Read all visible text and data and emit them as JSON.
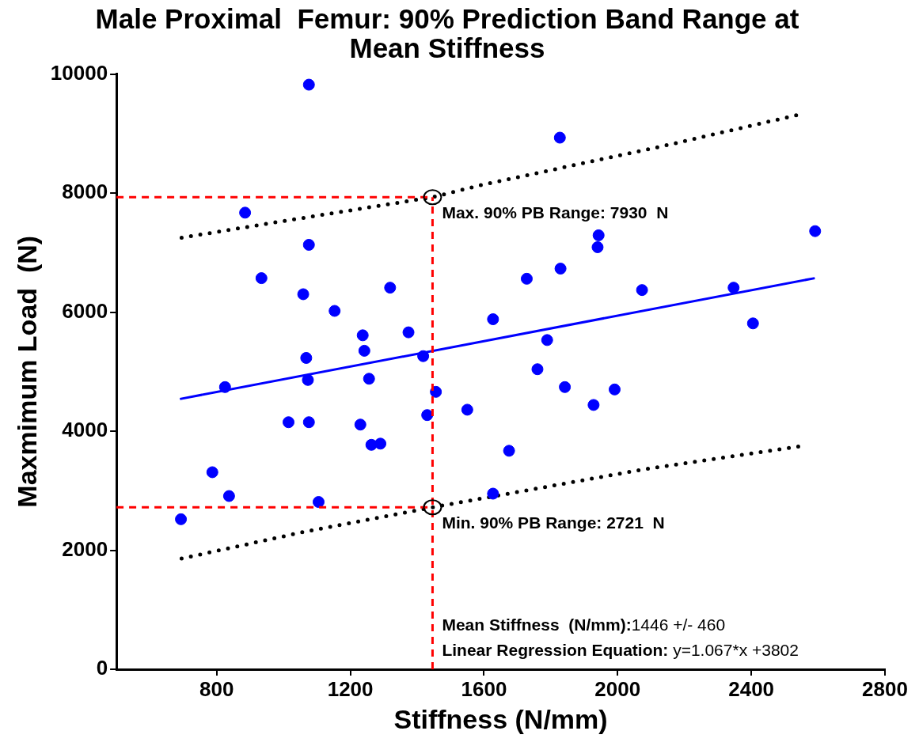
{
  "chart_data": {
    "type": "scatter",
    "title": "Male Proximal  Femur: 90% Prediction Band Range at Mean Stiffness",
    "xlabel": "Stiffness (N/mm)",
    "ylabel": "Maxmimum Load  (N)",
    "xlim": [
      500,
      2800
    ],
    "xticks": [
      800,
      1200,
      1600,
      2000,
      2400,
      2800
    ],
    "ylim": [
      0,
      10000
    ],
    "yticks": [
      0,
      2000,
      4000,
      6000,
      8000,
      10000
    ],
    "grid": false,
    "legend": false,
    "series": [
      {
        "color": "#0000ff",
        "marker": "circle",
        "x": [
          1076,
          885,
          1076,
          934,
          1059,
          1319,
          1153,
          1627,
          1237,
          1374,
          1242,
          1068,
          1418,
          825,
          1073,
          1256,
          1456,
          1550,
          1430,
          1015,
          1076,
          1230,
          1263,
          1290,
          787,
          837,
          1105,
          693,
          1627,
          1827,
          1943,
          1940,
          1829,
          1728,
          2073,
          2347,
          2591,
          2405,
          1789,
          1760,
          1842,
          1928,
          1991,
          1675
        ],
        "values": [
          9820,
          7670,
          7130,
          6570,
          6300,
          6410,
          6020,
          5880,
          5610,
          5660,
          5350,
          5230,
          5260,
          4740,
          4860,
          4880,
          4660,
          4360,
          4270,
          4150,
          4150,
          4110,
          3770,
          3790,
          3310,
          2910,
          2810,
          2520,
          2950,
          8930,
          7290,
          7090,
          6730,
          6560,
          6370,
          6410,
          7360,
          5810,
          5530,
          5040,
          4740,
          4440,
          4700,
          3670
        ]
      },
      {
        "type": "line",
        "color": "#0000ff",
        "line_style": "solid",
        "x": [
          690,
          2590
        ],
        "values": [
          4540,
          6570
        ]
      },
      {
        "type": "line",
        "color": "#000000",
        "line_style": "dotted",
        "x": [
          695,
          979,
          1446,
          1596,
          2121,
          2545
        ],
        "values": [
          7250,
          7510,
          7930,
          8140,
          8770,
          9320
        ]
      },
      {
        "type": "line",
        "color": "#000000",
        "line_style": "dotted",
        "x": [
          695,
          1071,
          1446,
          2070,
          2550
        ],
        "values": [
          1860,
          2320,
          2720,
          3350,
          3750
        ]
      }
    ],
    "ref_lines": [
      {
        "axis": "x",
        "value": 1446,
        "color": "#ff0000",
        "line_style": "dashed"
      },
      {
        "axis": "y",
        "value": 7930,
        "color": "#ff0000",
        "line_style": "dashed"
      },
      {
        "axis": "y",
        "value": 2721,
        "color": "#ff0000",
        "line_style": "dashed"
      }
    ],
    "annotations": [
      {
        "text": "Max. 90% PB Range: 7930  N",
        "x": 1446,
        "y": 7930
      },
      {
        "text": "Min. 90% PB Range: 2721  N",
        "x": 1446,
        "y": 2721
      },
      "Mean Stiffness  (N/mm):1446 +/- 460",
      "Linear Regression Equation: y=1.067*x +3802"
    ]
  }
}
